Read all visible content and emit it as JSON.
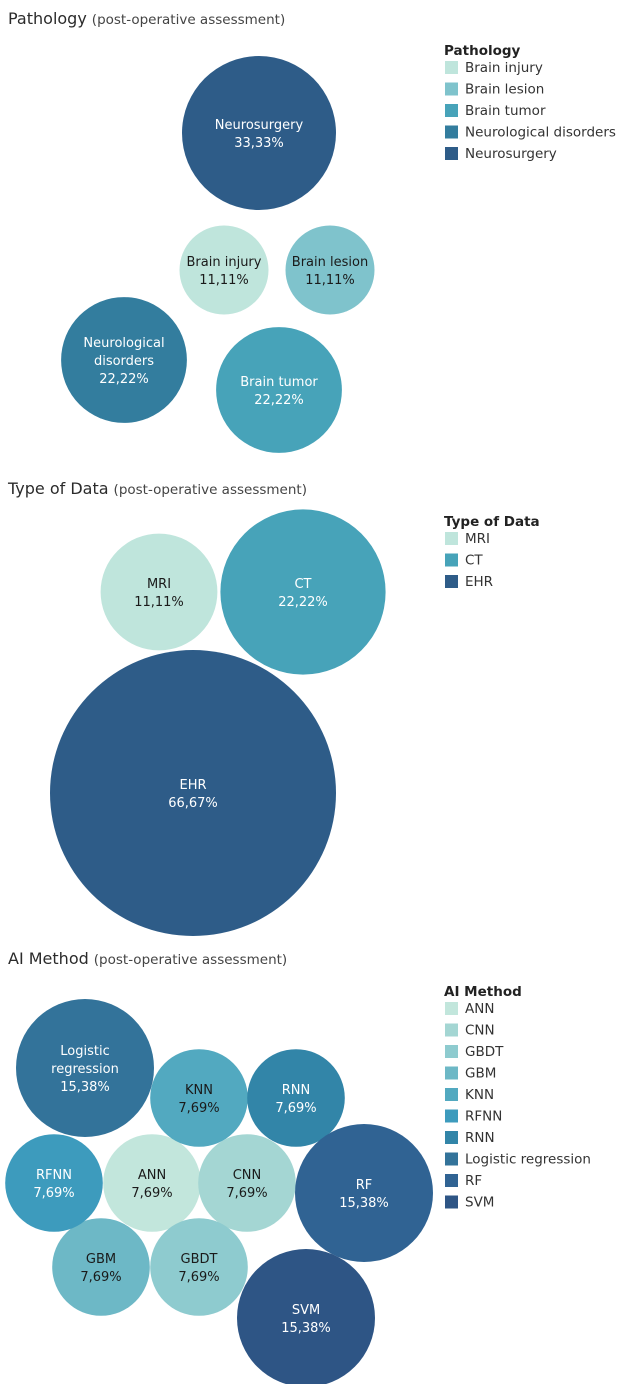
{
  "chart_data": [
    {
      "type": "bubble",
      "title": "Pathology",
      "subtitle": "(post-operative assessment)",
      "legend_title": "Pathology",
      "legend_position": "top-right",
      "categories": [
        "Brain injury",
        "Brain lesion",
        "Brain tumor",
        "Neurological disorders",
        "Neurosurgery"
      ],
      "values": [
        11.11,
        11.11,
        22.22,
        22.22,
        33.33
      ],
      "value_labels": [
        "11,11%",
        "11,11%",
        "22,22%",
        "22,22%",
        "33,33%"
      ],
      "bubble_lines": [
        [
          "Brain injury"
        ],
        [
          "Brain lesion"
        ],
        [
          "Brain tumor"
        ],
        [
          "Neurological",
          "disorders"
        ],
        [
          "Neurosurgery"
        ]
      ],
      "colors": [
        "#bfe5dc",
        "#7fc3cc",
        "#47a3b9",
        "#337d9e",
        "#2e5c88"
      ],
      "text_colors": [
        "#1a1a1a",
        "#1a1a1a",
        "#ffffff",
        "#ffffff",
        "#ffffff"
      ]
    },
    {
      "type": "bubble",
      "title": "Type of Data",
      "subtitle": "(post-operative assessment)",
      "legend_title": "Type of Data",
      "legend_position": "top-right",
      "categories": [
        "MRI",
        "CT",
        "EHR"
      ],
      "values": [
        11.11,
        22.22,
        66.67
      ],
      "value_labels": [
        "11,11%",
        "22,22%",
        "66,67%"
      ],
      "bubble_lines": [
        [
          "MRI"
        ],
        [
          "CT"
        ],
        [
          "EHR"
        ]
      ],
      "colors": [
        "#bfe5dc",
        "#47a3b9",
        "#2e5c88"
      ],
      "text_colors": [
        "#1a1a1a",
        "#ffffff",
        "#ffffff"
      ]
    },
    {
      "type": "bubble",
      "title": "AI Method",
      "subtitle": "(post-operative assessment)",
      "legend_title": "AI Method",
      "legend_position": "top-right",
      "categories": [
        "ANN",
        "CNN",
        "GBDT",
        "GBM",
        "KNN",
        "RFNN",
        "RNN",
        "Logistic regression",
        "RF",
        "SVM"
      ],
      "values": [
        7.69,
        7.69,
        7.69,
        7.69,
        7.69,
        7.69,
        7.69,
        15.38,
        15.38,
        15.38
      ],
      "value_labels": [
        "7,69%",
        "7,69%",
        "7,69%",
        "7,69%",
        "7,69%",
        "7,69%",
        "7,69%",
        "15,38%",
        "15,38%",
        "15,38%"
      ],
      "bubble_lines": [
        [
          "ANN"
        ],
        [
          "CNN"
        ],
        [
          "GBDT"
        ],
        [
          "GBM"
        ],
        [
          "KNN"
        ],
        [
          "RFNN"
        ],
        [
          "RNN"
        ],
        [
          "Logistic",
          "regression"
        ],
        [
          "RF"
        ],
        [
          "SVM"
        ]
      ],
      "colors": [
        "#c2e6dc",
        "#a4d6d3",
        "#8ecbcf",
        "#6db8c6",
        "#52a9c0",
        "#3d9bbd",
        "#3285a8",
        "#33739a",
        "#306393",
        "#2e5585"
      ],
      "text_colors": [
        "#1a1a1a",
        "#1a1a1a",
        "#1a1a1a",
        "#1a1a1a",
        "#1a1a1a",
        "#ffffff",
        "#ffffff",
        "#ffffff",
        "#ffffff",
        "#ffffff"
      ]
    }
  ]
}
